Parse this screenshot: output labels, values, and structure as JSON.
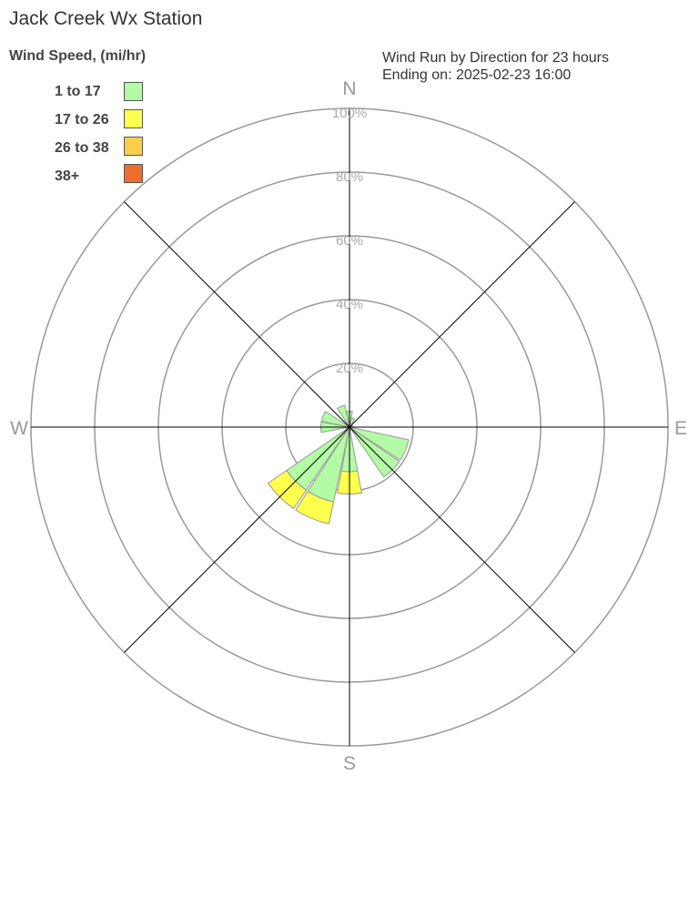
{
  "title": "Jack Creek Wx Station",
  "legend": {
    "title": "Wind Speed, (mi/hr)",
    "items": [
      {
        "label": "1 to 17",
        "color": "#b3fba4"
      },
      {
        "label": "17 to 26",
        "color": "#ffff4d"
      },
      {
        "label": "26 to 38",
        "color": "#f9cf4a"
      },
      {
        "label": "38+",
        "color": "#ef6d2b"
      }
    ]
  },
  "subtitle_line1": "Wind Run by Direction for 23 hours",
  "subtitle_line2": "Ending on: 2025-02-23 16:00",
  "chart_data": {
    "type": "polar-bar",
    "title": "Wind Run by Direction for 23 hours",
    "compass_labels": [
      "N",
      "E",
      "S",
      "W"
    ],
    "radial_ticks": [
      "20%",
      "40%",
      "60%",
      "80%",
      "100%"
    ],
    "radial_range": [
      0,
      100
    ],
    "directions": [
      "N",
      "NNE",
      "NE",
      "ENE",
      "E",
      "ESE",
      "SE",
      "SSE",
      "S",
      "SSW",
      "SW",
      "WSW",
      "W",
      "WNW",
      "NW",
      "NNW"
    ],
    "series": [
      {
        "name": "1 to 17",
        "values": [
          5,
          3,
          1,
          1,
          1,
          19,
          19,
          1,
          14,
          24,
          24,
          1,
          9,
          9,
          1,
          7
        ]
      },
      {
        "name": "17 to 26",
        "values": [
          0,
          0,
          0,
          0,
          0,
          0,
          0,
          0,
          7,
          7,
          7,
          0,
          0,
          0,
          0,
          0
        ]
      },
      {
        "name": "26 to 38",
        "values": [
          0,
          0,
          0,
          0,
          0,
          0,
          0,
          0,
          0,
          0,
          0,
          0,
          0,
          0,
          0,
          0
        ]
      },
      {
        "name": "38+",
        "values": [
          0,
          0,
          0,
          0,
          0,
          0,
          0,
          0,
          0,
          0,
          0,
          0,
          0,
          0,
          0,
          0
        ]
      }
    ]
  }
}
